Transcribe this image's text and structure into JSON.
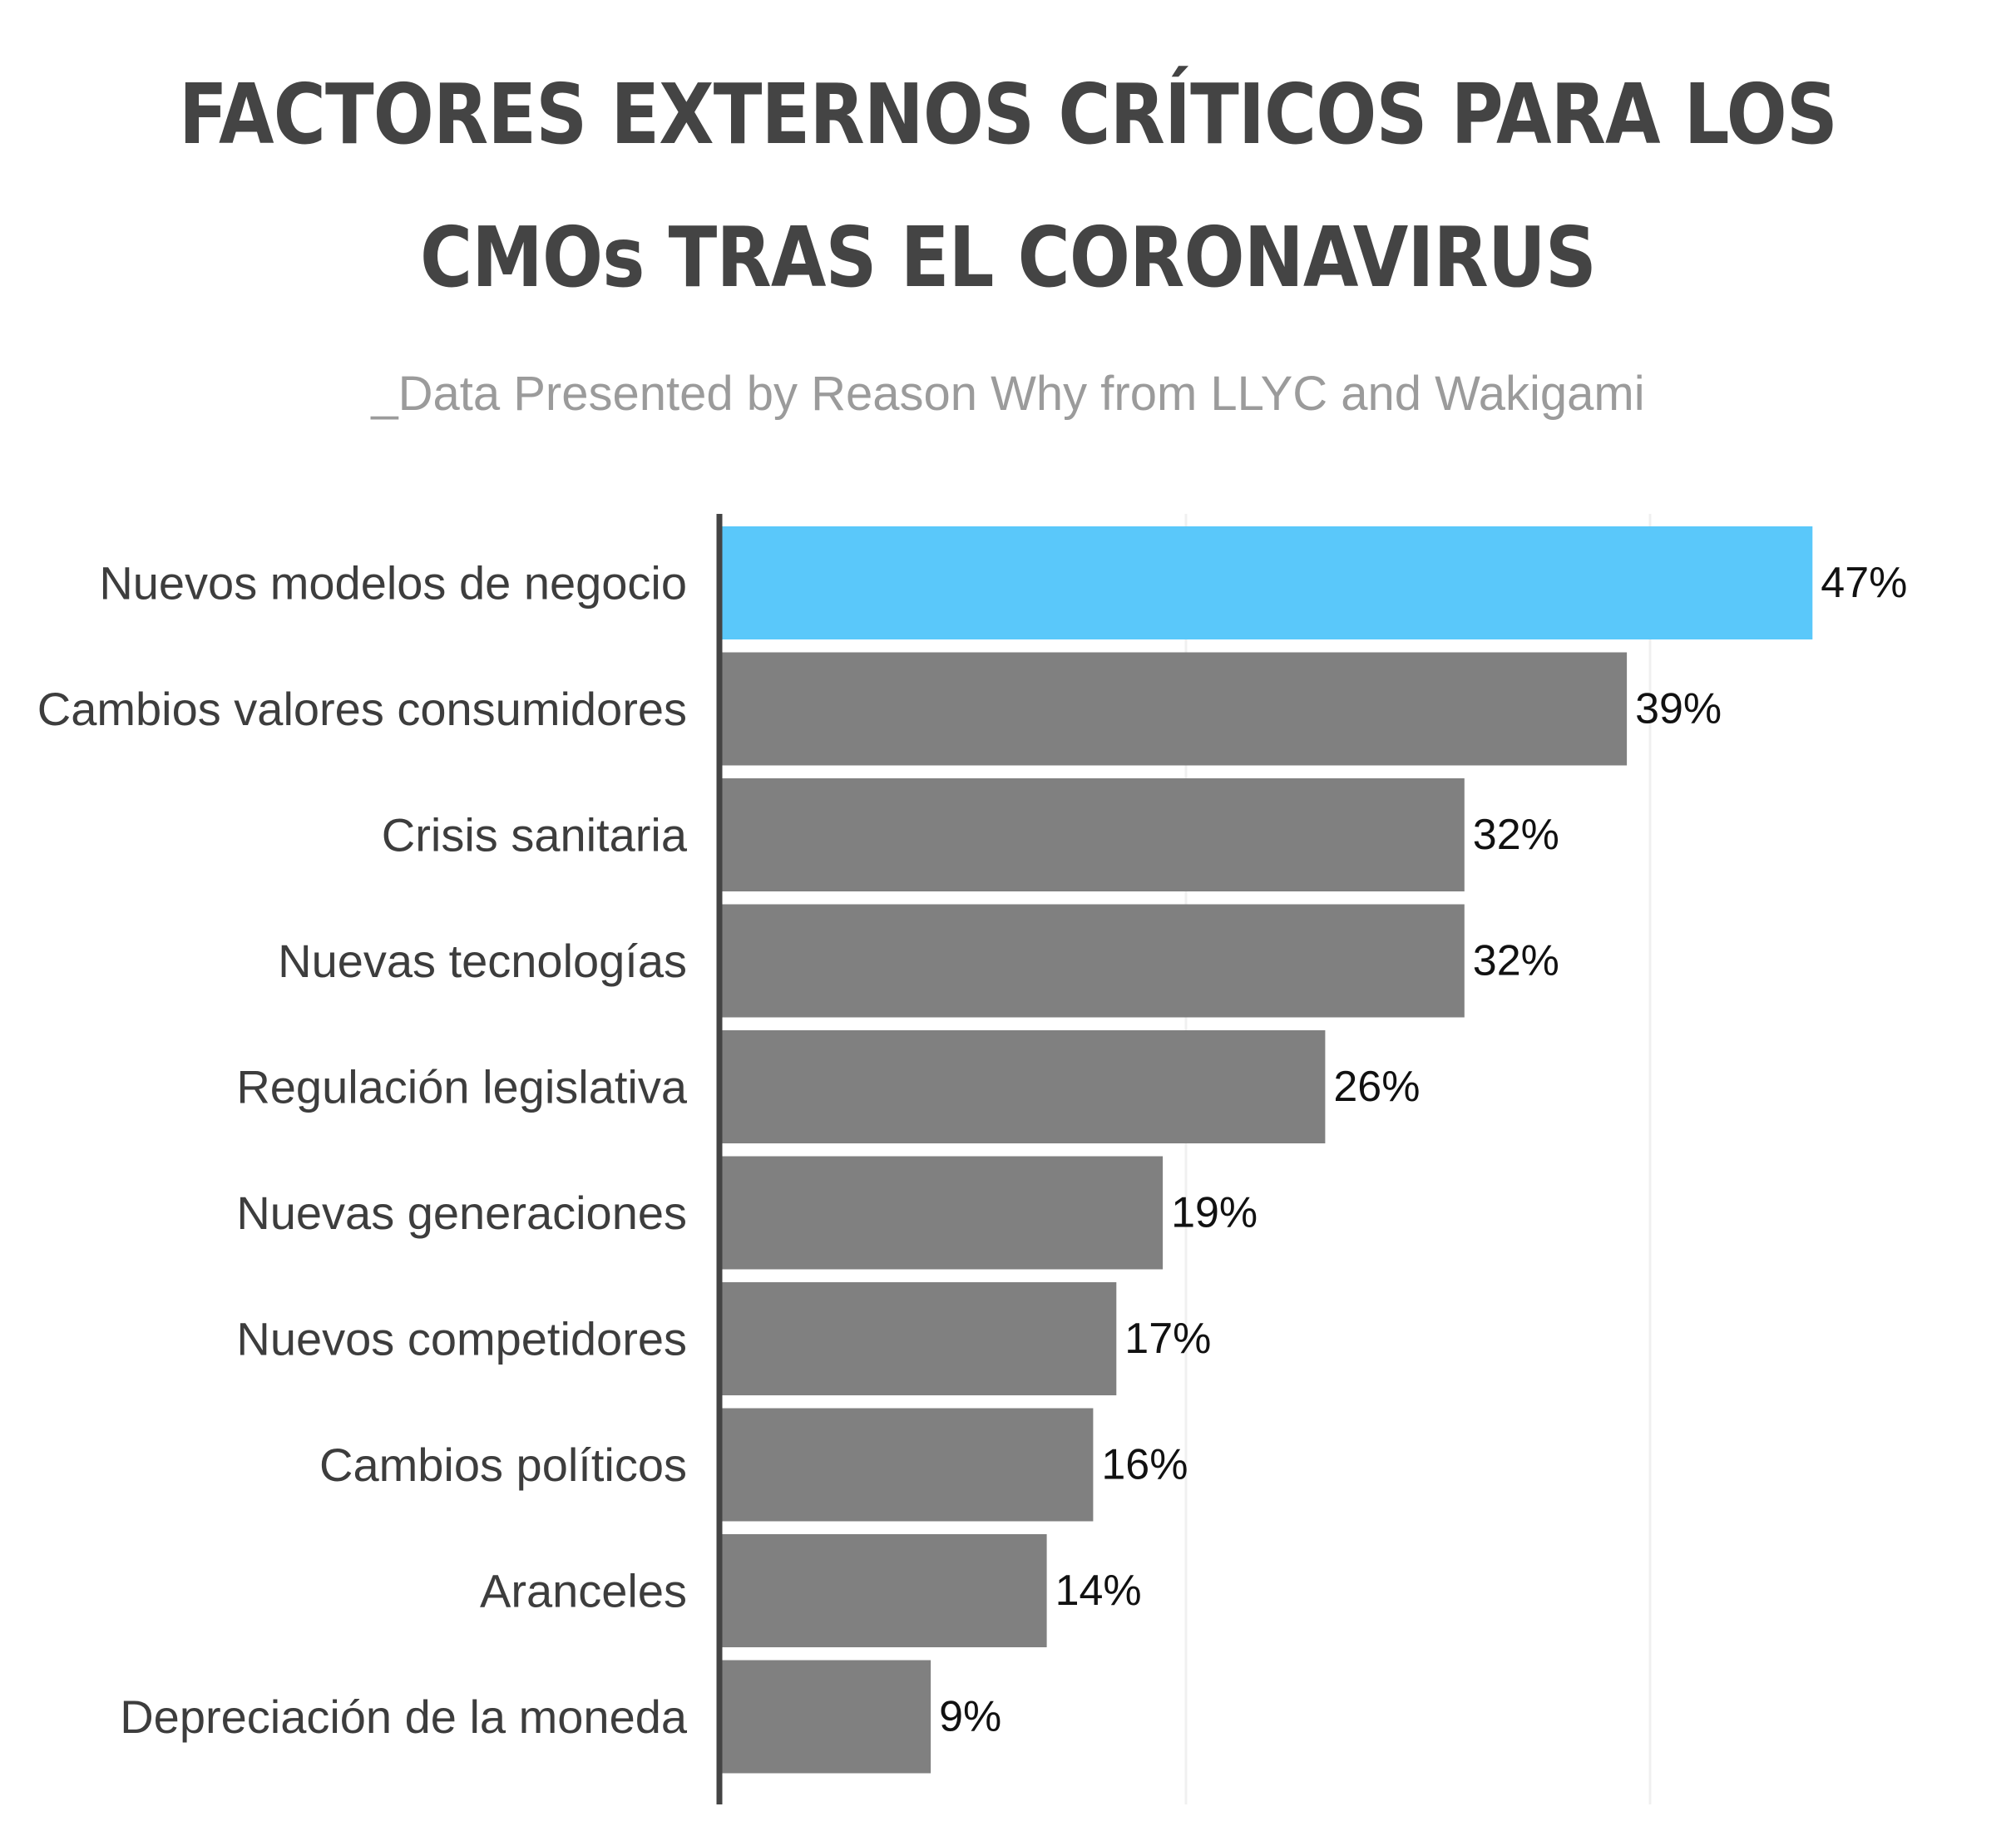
{
  "colors": {
    "highlight": "#5ac8fa",
    "bar": "#808080",
    "axis": "#444444",
    "grid": "#f0f0f0",
    "title": "#444444",
    "subtitle": "#9b9b9b"
  },
  "header": {
    "title_line1": "FACTORES EXTERNOS CRÍTICOS PARA LOS",
    "title_line2": "CMOs TRAS EL CORONAVIRUS",
    "subtitle": "_Data Presented by Reason Why from LLYC and Wakigami"
  },
  "chart_data": {
    "type": "bar",
    "orientation": "horizontal",
    "title": "FACTORES EXTERNOS CRÍTICOS PARA LOS CMOs TRAS EL CORONAVIRUS",
    "subtitle": "_Data Presented by Reason Why from LLYC and Wakigami",
    "categories": [
      "Nuevos modelos de negocio",
      "Cambios valores consumidores",
      "Crisis sanitaria",
      "Nuevas tecnologías",
      "Regulación legislativa",
      "Nuevas generaciones",
      "Nuevos competidores",
      "Cambios políticos",
      "Aranceles",
      "Depreciación de la moneda"
    ],
    "values": [
      47,
      39,
      32,
      32,
      26,
      19,
      17,
      16,
      14,
      9
    ],
    "value_labels": [
      "47%",
      "39%",
      "32%",
      "32%",
      "26%",
      "19%",
      "17%",
      "16%",
      "14%",
      "9%"
    ],
    "highlight_index": 0,
    "unit": "%",
    "xlim": [
      0,
      60
    ],
    "gridlines_at": [
      20,
      40
    ],
    "grid": true,
    "legend": "none",
    "xlabel": "",
    "ylabel": ""
  }
}
